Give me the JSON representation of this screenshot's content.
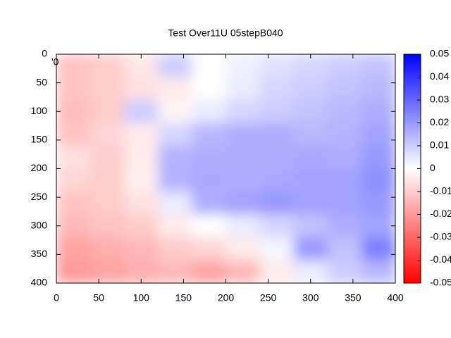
{
  "chart_data": {
    "type": "heatmap",
    "title": "Test Over11U 05stepB040",
    "annotation": "'0",
    "xbins": [
      0,
      40,
      80,
      120,
      160,
      200,
      240,
      280,
      320,
      360,
      400
    ],
    "ybins": [
      0,
      40,
      80,
      120,
      160,
      200,
      240,
      280,
      320,
      360,
      400
    ],
    "z": [
      [
        -0.012,
        -0.01,
        -0.005,
        0.01,
        0,
        0.003,
        0.006,
        0.008,
        0.01,
        0.012
      ],
      [
        -0.012,
        -0.01,
        -0.006,
        -0.004,
        0,
        0.004,
        0.008,
        0.01,
        0.012,
        0.014
      ],
      [
        -0.013,
        -0.01,
        0.01,
        -0.002,
        0.004,
        0.008,
        0.01,
        0.012,
        0.014,
        0.016
      ],
      [
        -0.012,
        -0.008,
        -0.004,
        0.008,
        0.014,
        0.016,
        0.016,
        0.014,
        0.015,
        0.018
      ],
      [
        -0.006,
        -0.01,
        -0.004,
        0.015,
        0.016,
        0.016,
        0.016,
        0.017,
        0.016,
        0.02
      ],
      [
        -0.008,
        -0.01,
        -0.003,
        0.015,
        0.017,
        0.016,
        0.017,
        0.018,
        0.018,
        0.022
      ],
      [
        -0.012,
        -0.01,
        -0.006,
        0.004,
        0.016,
        0.018,
        0.02,
        0.018,
        0.018,
        0.02
      ],
      [
        -0.014,
        -0.012,
        -0.01,
        -0.004,
        0,
        0.004,
        0.008,
        0.012,
        0.016,
        0.018
      ],
      [
        -0.018,
        -0.016,
        -0.014,
        -0.01,
        -0.008,
        -0.004,
        0.002,
        0.02,
        0.012,
        0.025
      ],
      [
        -0.02,
        -0.018,
        -0.016,
        -0.014,
        -0.018,
        -0.014,
        -0.004,
        0.004,
        0.01,
        0.014
      ]
    ],
    "xlim": [
      0,
      400
    ],
    "ylim": [
      0,
      400
    ],
    "y_inverted": true,
    "xticks": [
      0,
      50,
      100,
      150,
      200,
      250,
      300,
      350,
      400
    ],
    "yticks": [
      0,
      50,
      100,
      150,
      200,
      250,
      300,
      350,
      400
    ],
    "clim": [
      -0.05,
      0.05
    ],
    "cticks": [
      0.05,
      0.04,
      0.03,
      0.02,
      0.01,
      0,
      -0.01,
      -0.02,
      -0.03,
      -0.04,
      -0.05
    ],
    "colormap": [
      "#ff0000",
      "#ffffff",
      "#0000ff"
    ]
  }
}
